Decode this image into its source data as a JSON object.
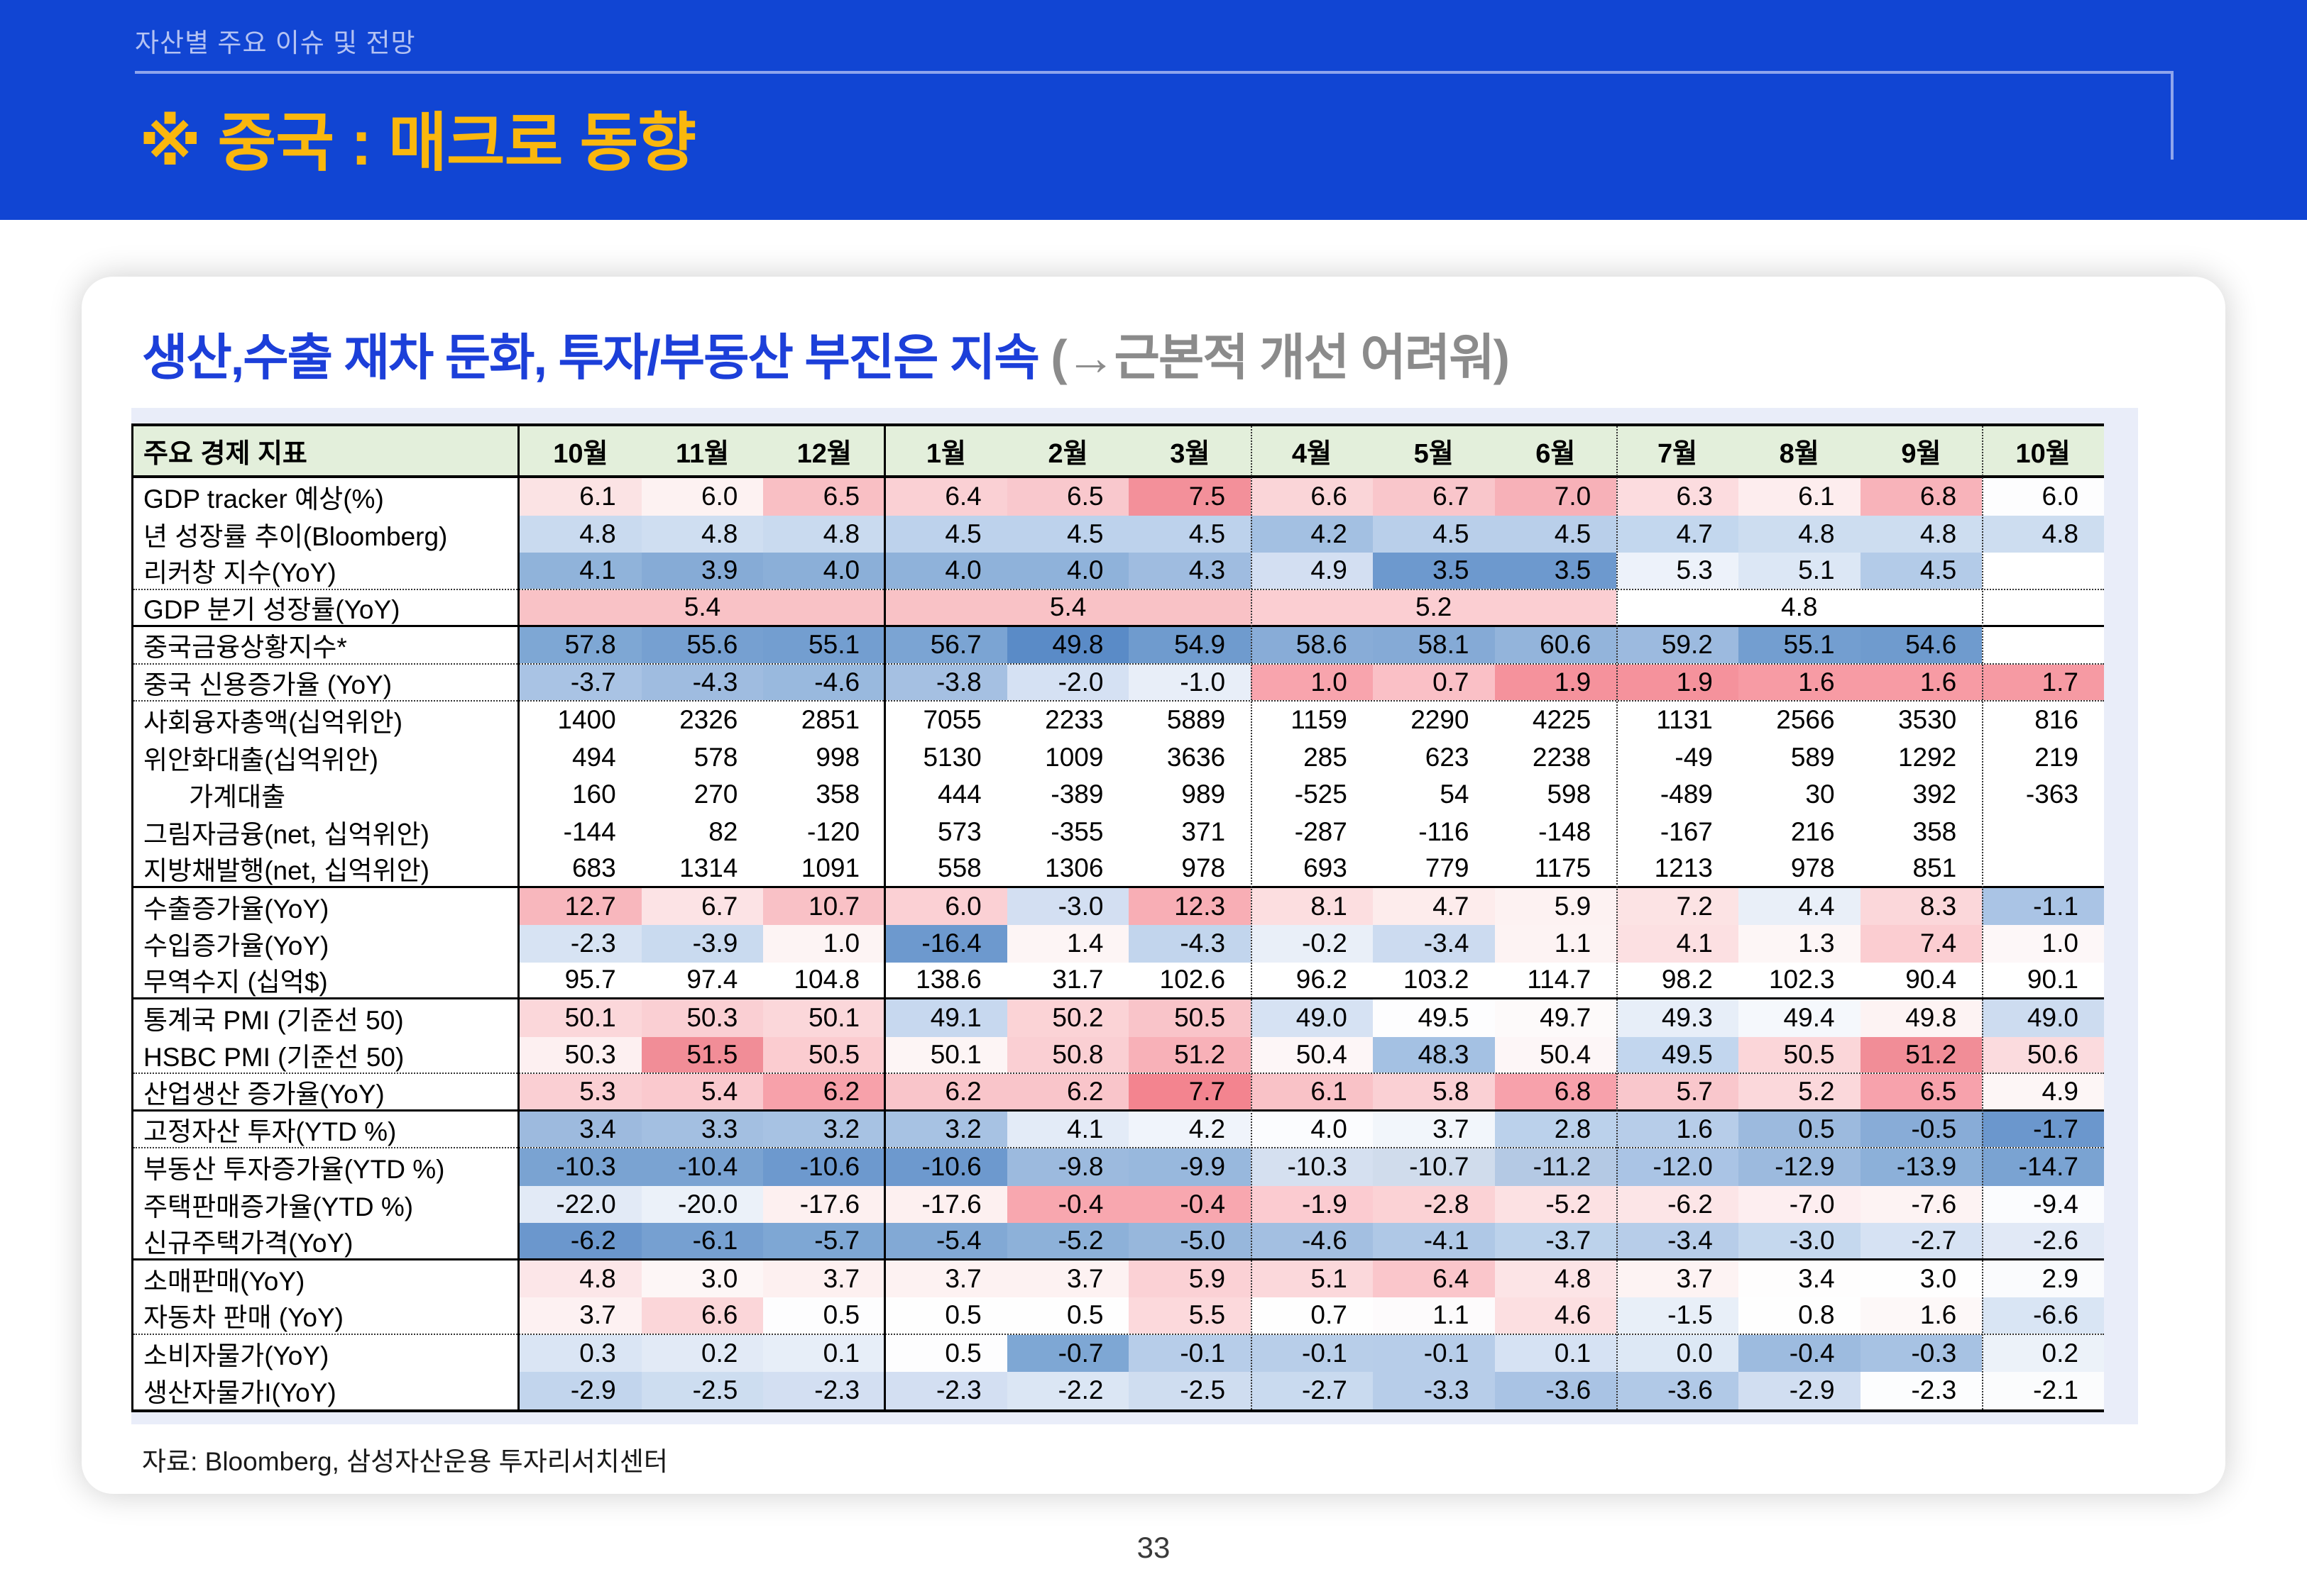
{
  "header": {
    "breadcrumb": "자산별 주요 이슈 및 전망",
    "title": "※ 중국 : 매크로 동향"
  },
  "content": {
    "title_main": "생산,수출 재차 둔화, 투자/부동산 부진은 지속 ",
    "title_note": "(→근본적 개선 어려워)",
    "source": "자료: Bloomberg, 삼성자산운용 투자리서치센터",
    "page_number": "33"
  },
  "colors": {
    "topbar_bg": "#1145d3",
    "topbar_breadcrumb": "#b4c2f2",
    "topbar_rule": "#8fa5ec",
    "headline_yellow": "#fab70d",
    "title_blue": "#1c3fd9",
    "title_gray": "#8b8b8b",
    "table_header_bg": "#e3efdb",
    "panel_bg": "#e9edf9",
    "positive_red": "#f3909a",
    "negative_blue": "#6d99ce"
  },
  "table": {
    "corner_label": "주요 경제 지표",
    "columns": [
      "10월",
      "11월",
      "12월",
      "1월",
      "2월",
      "3월",
      "4월",
      "5월",
      "6월",
      "7월",
      "8월",
      "9월",
      "10월"
    ],
    "rows": [
      {
        "label": "GDP tracker 예상(%)",
        "values": [
          "6.1",
          "6.0",
          "6.5",
          "6.4",
          "6.5",
          "7.5",
          "6.6",
          "6.7",
          "7.0",
          "6.3",
          "6.1",
          "6.8",
          "6.0"
        ],
        "bg": [
          "#fbe3e4",
          "#fdf2f2",
          "#f9bfc4",
          "#fad0d4",
          "#f9c8cd",
          "#f3909a",
          "#fad5d8",
          "#f9c6cb",
          "#f7b1b8",
          "#fcdcdf",
          "#fdedee",
          "#f8b3ba",
          "#fdfdfe"
        ],
        "sep": ""
      },
      {
        "label": "년 성장률 추이(Bloomberg)",
        "values": [
          "4.8",
          "4.8",
          "4.8",
          "4.5",
          "4.5",
          "4.5",
          "4.2",
          "4.5",
          "4.5",
          "4.7",
          "4.8",
          "4.8",
          "4.8"
        ],
        "bg": [
          "#c9daef",
          "#cfdef1",
          "#c9daef",
          "#bdd2ec",
          "#bdd2ec",
          "#bdd2ec",
          "#a3c0e2",
          "#b9cfea",
          "#b9cfea",
          "#c3d7ee",
          "#cdddf0",
          "#cdddf0",
          "#cdddf0"
        ],
        "sep": ""
      },
      {
        "label": "리커창 지수(YoY)",
        "values": [
          "4.1",
          "3.9",
          "4.0",
          "4.0",
          "4.0",
          "4.3",
          "4.9",
          "3.5",
          "3.5",
          "5.3",
          "5.1",
          "4.5",
          ""
        ],
        "bg": [
          "#90b3da",
          "#86abd6",
          "#8bafd8",
          "#8fb2da",
          "#8fb2da",
          "#9fbce0",
          "#d3dff2",
          "#6d99ce",
          "#6d99ce",
          "#edf2fa",
          "#dce7f5",
          "#b3cbe8",
          ""
        ],
        "sep": "dotted"
      },
      {
        "label": "GDP 분기 성장률(YoY)",
        "type": "merged",
        "spans": [
          {
            "cols": 3,
            "text": "5.4",
            "bg": "#f9c2c6"
          },
          {
            "cols": 3,
            "text": "5.4",
            "bg": "#f9c2c6"
          },
          {
            "cols": 3,
            "text": "5.2",
            "bg": "#fbced2"
          },
          {
            "cols": 3,
            "text": "4.8",
            "bg": ""
          },
          {
            "cols": 1,
            "text": "",
            "bg": ""
          }
        ],
        "sep": "solid"
      },
      {
        "label": "중국금융상황지수*",
        "values": [
          "57.8",
          "55.6",
          "55.1",
          "56.7",
          "49.8",
          "54.9",
          "58.6",
          "58.1",
          "60.6",
          "59.2",
          "55.1",
          "54.6",
          ""
        ],
        "bg": [
          "#7ea7d4",
          "#76a0d1",
          "#739ed0",
          "#7ba4d3",
          "#5a8bc7",
          "#6f9bce",
          "#88acd7",
          "#85aad6",
          "#93b4db",
          "#9cbadf",
          "#739ed0",
          "#6f9bce",
          ""
        ],
        "sep": "dotted"
      },
      {
        "label": "중국 신용증가율 (YoY)",
        "values": [
          "-3.7",
          "-4.3",
          "-4.6",
          "-3.8",
          "-2.0",
          "-1.0",
          "1.0",
          "0.7",
          "1.9",
          "1.9",
          "1.6",
          "1.6",
          "1.7"
        ],
        "bg": [
          "#a9c3e4",
          "#9fbce0",
          "#99b9de",
          "#a5c0e2",
          "#d5e1f3",
          "#e8eef8",
          "#f8a4ad",
          "#fac0c6",
          "#f5929c",
          "#f5929c",
          "#f79ba4",
          "#f79ba4",
          "#f69aa3"
        ],
        "sep": "dotted"
      },
      {
        "label": "사회융자총액(십억위안)",
        "values": [
          "1400",
          "2326",
          "2851",
          "7055",
          "2233",
          "5889",
          "1159",
          "2290",
          "4225",
          "1131",
          "2566",
          "3530",
          "816"
        ],
        "bg": [
          "",
          "",
          "",
          "",
          "",
          "",
          "",
          "",
          "",
          "",
          "",
          "",
          ""
        ],
        "sep": ""
      },
      {
        "label": "위안화대출(십억위안)",
        "values": [
          "494",
          "578",
          "998",
          "5130",
          "1009",
          "3636",
          "285",
          "623",
          "2238",
          "-49",
          "589",
          "1292",
          "219"
        ],
        "bg": [
          "",
          "",
          "",
          "",
          "",
          "",
          "",
          "",
          "",
          "",
          "",
          "",
          ""
        ],
        "sep": ""
      },
      {
        "label": "가계대출",
        "indent": true,
        "values": [
          "160",
          "270",
          "358",
          "444",
          "-389",
          "989",
          "-525",
          "54",
          "598",
          "-489",
          "30",
          "392",
          "-363"
        ],
        "bg": [
          "",
          "",
          "",
          "",
          "",
          "",
          "",
          "",
          "",
          "",
          "",
          "",
          ""
        ],
        "sep": ""
      },
      {
        "label": "그림자금융(net, 십억위안)",
        "values": [
          "-144",
          "82",
          "-120",
          "573",
          "-355",
          "371",
          "-287",
          "-116",
          "-148",
          "-167",
          "216",
          "358",
          ""
        ],
        "bg": [
          "",
          "",
          "",
          "",
          "",
          "",
          "",
          "",
          "",
          "",
          "",
          "",
          ""
        ],
        "sep": ""
      },
      {
        "label": "지방채발행(net, 십억위안)",
        "values": [
          "683",
          "1314",
          "1091",
          "558",
          "1306",
          "978",
          "693",
          "779",
          "1175",
          "1213",
          "978",
          "851",
          ""
        ],
        "bg": [
          "",
          "",
          "",
          "",
          "",
          "",
          "",
          "",
          "",
          "",
          "",
          "",
          ""
        ],
        "sep": "solid"
      },
      {
        "label": "수출증가율(YoY)",
        "values": [
          "12.7",
          "6.7",
          "10.7",
          "6.0",
          "-3.0",
          "12.3",
          "8.1",
          "4.7",
          "5.9",
          "7.2",
          "4.4",
          "8.3",
          "-1.1"
        ],
        "bg": [
          "#f8b7bd",
          "#fce3e5",
          "#f9c1c6",
          "#fbd0d4",
          "#d3dff2",
          "#f8aeb5",
          "#fcdee0",
          "#fdecec",
          "#fdf2f2",
          "#fce3e4",
          "#e9eff8",
          "#fbd7da",
          "#aac4e5"
        ],
        "sep": ""
      },
      {
        "label": "수입증가율(YoY)",
        "values": [
          "-2.3",
          "-3.9",
          "1.0",
          "-16.4",
          "1.4",
          "-4.3",
          "-0.2",
          "-3.4",
          "1.1",
          "4.1",
          "1.3",
          "7.4",
          "1.0"
        ],
        "bg": [
          "#d7e3f3",
          "#c9daef",
          "#fdf4f4",
          "#6d99ce",
          "#fdf5f5",
          "#c2d5ed",
          "#e9eff8",
          "#ccdbf0",
          "#fdf3f3",
          "#fce0e2",
          "#fdf6f6",
          "#fbcdd1",
          "#fdf7f8"
        ],
        "sep": ""
      },
      {
        "label": "무역수지 (십억$)",
        "values": [
          "95.7",
          "97.4",
          "104.8",
          "138.6",
          "31.7",
          "102.6",
          "96.2",
          "103.2",
          "114.7",
          "98.2",
          "102.3",
          "90.4",
          "90.1"
        ],
        "bg": [
          "",
          "",
          "",
          "",
          "",
          "",
          "",
          "",
          "",
          "",
          "",
          "",
          ""
        ],
        "sep": "solid"
      },
      {
        "label": "통계국 PMI (기준선 50)",
        "values": [
          "50.1",
          "50.3",
          "50.1",
          "49.1",
          "50.2",
          "50.5",
          "49.0",
          "49.5",
          "49.7",
          "49.3",
          "49.4",
          "49.8",
          "49.0"
        ],
        "bg": [
          "#fbd7da",
          "#facfd3",
          "#fbd7da",
          "#c7d8ef",
          "#fbd3d6",
          "#f9c4c9",
          "#d6e2f3",
          "#fdfdfe",
          "#fdfafa",
          "#e7eef8",
          "#f5f8fc",
          "#fdf3f3",
          "#cddcf0"
        ],
        "sep": ""
      },
      {
        "label": "HSBC PMI (기준선 50)",
        "values": [
          "50.3",
          "51.5",
          "50.5",
          "50.1",
          "50.8",
          "51.2",
          "50.4",
          "48.3",
          "50.4",
          "49.5",
          "50.5",
          "51.2",
          "50.6"
        ],
        "bg": [
          "#fdf0f1",
          "#f18d97",
          "#fbccd0",
          "#fdf5f5",
          "#facfd3",
          "#f8b1b8",
          "#fdf6f7",
          "#a4c1e3",
          "#fdf6f7",
          "#c2d6ee",
          "#fbd6d9",
          "#f18d97",
          "#fbdbde"
        ],
        "sep": "dotted"
      },
      {
        "label": "산업생산 증가율(YoY)",
        "values": [
          "5.3",
          "5.4",
          "6.2",
          "6.2",
          "6.2",
          "7.7",
          "6.1",
          "5.8",
          "6.8",
          "5.7",
          "5.2",
          "6.5",
          "4.9"
        ],
        "bg": [
          "#facfd3",
          "#fac9ce",
          "#f7a1aa",
          "#f9c5ca",
          "#f9c5ca",
          "#f3848f",
          "#f9c2c7",
          "#fad0d4",
          "#f7a1ab",
          "#f9c7cc",
          "#fbd8db",
          "#f7a2ac",
          "#fdf6f6"
        ],
        "sep": "solid"
      },
      {
        "label": "고정자산 투자(YTD %)",
        "values": [
          "3.4",
          "3.3",
          "3.2",
          "3.2",
          "4.1",
          "4.2",
          "4.0",
          "3.7",
          "2.8",
          "1.6",
          "0.5",
          "-0.5",
          "-1.7"
        ],
        "bg": [
          "#9dbade",
          "#a3bfe1",
          "#a7c2e3",
          "#a7c2e3",
          "#e3ebf7",
          "#f0f4fb",
          "#fbfcfe",
          "#f2f6fb",
          "#bbd1eb",
          "#b7cde9",
          "#9cbade",
          "#88acd7",
          "#6b97cd"
        ],
        "sep": "dotted"
      },
      {
        "label": "부동산 투자증가율(YTD %)",
        "values": [
          "-10.3",
          "-10.4",
          "-10.6",
          "-10.6",
          "-9.8",
          "-9.9",
          "-10.3",
          "-10.7",
          "-11.2",
          "-12.0",
          "-12.9",
          "-13.9",
          "-14.7"
        ],
        "bg": [
          "#7aa3d2",
          "#7aa3d2",
          "#6d99ce",
          "#6d99ce",
          "#9cbade",
          "#98b8dd",
          "#d5e0f0",
          "#d0dcec",
          "#b4c9e4",
          "#aac4e5",
          "#9cbade",
          "#8cb0d9",
          "#7aa3d2"
        ],
        "sep": ""
      },
      {
        "label": "주택판매증가율(YTD %)",
        "values": [
          "-22.0",
          "-20.0",
          "-17.6",
          "-17.6",
          "-0.4",
          "-0.4",
          "-1.9",
          "-2.8",
          "-5.2",
          "-6.2",
          "-7.0",
          "-7.6",
          "-9.4"
        ],
        "bg": [
          "#e2eaf6",
          "#ebf1f9",
          "#fdf0f0",
          "#fdf0f0",
          "#f8a7af",
          "#f8a7af",
          "#fbcbd0",
          "#fbd2d5",
          "#fce1e3",
          "#fce5e7",
          "#fdeef0",
          "#fdf3f3",
          "#fbfcfe"
        ],
        "sep": ""
      },
      {
        "label": "신규주택가격(YoY)",
        "values": [
          "-6.2",
          "-6.1",
          "-5.7",
          "-5.4",
          "-5.2",
          "-5.0",
          "-4.6",
          "-4.1",
          "-3.7",
          "-3.4",
          "-3.0",
          "-2.7",
          "-2.6"
        ],
        "bg": [
          "#6b97cd",
          "#76a0d1",
          "#7ea7d4",
          "#82a9d5",
          "#8db1d9",
          "#97b7dc",
          "#a3bfe1",
          "#afc8e6",
          "#bcd2eb",
          "#b7cde9",
          "#c5d8ee",
          "#d6e2f3",
          "#e1e9f6"
        ],
        "sep": "solid"
      },
      {
        "label": "소매판매(YoY)",
        "values": [
          "4.8",
          "3.0",
          "3.7",
          "3.7",
          "3.7",
          "5.9",
          "5.1",
          "6.4",
          "4.8",
          "3.7",
          "3.4",
          "3.0",
          "2.9"
        ],
        "bg": [
          "#fce6e8",
          "#fdf6f6",
          "#fdf0f0",
          "#fdf2f2",
          "#fdf2f2",
          "#fbd1d5",
          "#fbd8db",
          "#fac6cb",
          "#fce4e6",
          "#fdf3f3",
          "#fefdfd",
          "#fefefe",
          "#fafbfd"
        ],
        "sep": ""
      },
      {
        "label": "자동차 판매 (YoY)",
        "values": [
          "3.7",
          "6.6",
          "0.5",
          "0.5",
          "0.5",
          "5.5",
          "0.7",
          "1.1",
          "4.6",
          "-1.5",
          "0.8",
          "1.6",
          "-6.6"
        ],
        "bg": [
          "#fdf1f2",
          "#fbd6d9",
          "#fdfdfe",
          "#fefefe",
          "#fefefe",
          "#fcd9dc",
          "#fefefe",
          "#fdfbfc",
          "#fcdfe1",
          "#e8eff8",
          "#fefefe",
          "#fdf8f8",
          "#d9e5f4"
        ],
        "sep": "dotted"
      },
      {
        "label": "소비자물가(YoY)",
        "values": [
          "0.3",
          "0.2",
          "0.1",
          "0.5",
          "-0.7",
          "-0.1",
          "-0.1",
          "-0.1",
          "0.1",
          "0.0",
          "-0.4",
          "-0.3",
          "0.2"
        ],
        "bg": [
          "#dae5f4",
          "#e2eaf6",
          "#e7eef8",
          "#fdfdfe",
          "#7ea7d4",
          "#b7cde9",
          "#b8cee9",
          "#b7cde9",
          "#d6e2f3",
          "#dde8f5",
          "#9dbbdf",
          "#a7c2e3",
          "#ecf2f9"
        ],
        "sep": ""
      },
      {
        "label": "생산자물가I(YoY)",
        "values": [
          "-2.9",
          "-2.5",
          "-2.3",
          "-2.3",
          "-2.2",
          "-2.5",
          "-2.7",
          "-3.3",
          "-3.6",
          "-3.6",
          "-2.9",
          "-2.3",
          "-2.1"
        ],
        "bg": [
          "#c2d5ed",
          "#cdddf0",
          "#d3dff2",
          "#d3dff2",
          "#dbe6f4",
          "#cfddf0",
          "#c9daef",
          "#b7cde9",
          "#a9c3e4",
          "#b1c9e7",
          "#d1def1",
          "#fcfdfe",
          "#fbfcfd"
        ],
        "sep": ""
      }
    ]
  }
}
